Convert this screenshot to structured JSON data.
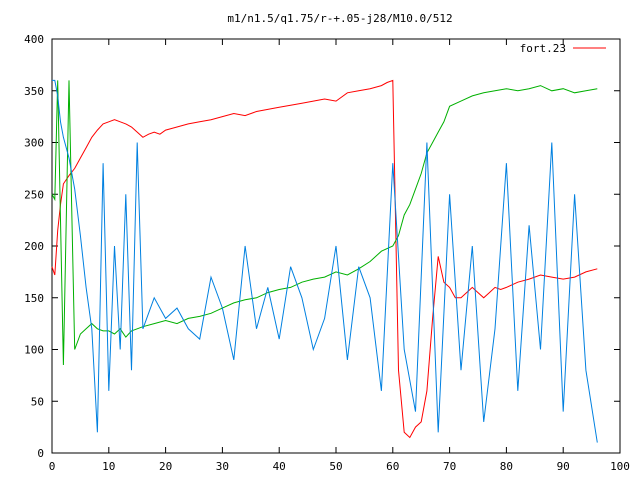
{
  "chart_data": {
    "type": "line",
    "title": "m1/n1.5/q1.75/r-+.05-j28/M10.0/512",
    "xlabel": "",
    "ylabel": "",
    "xlim": [
      0,
      100
    ],
    "ylim": [
      0,
      400
    ],
    "x_ticks": [
      "0",
      "10",
      "20",
      "30",
      "40",
      "50",
      "60",
      "70",
      "80",
      "90",
      "100"
    ],
    "y_ticks": [
      "0",
      "50",
      "100",
      "150",
      "200",
      "250",
      "300",
      "350",
      "400"
    ],
    "grid": false,
    "legend": "top-right",
    "series": [
      {
        "name": "fort.23",
        "color": "#ff0000",
        "x": [
          0,
          0.5,
          1,
          1.5,
          2,
          3,
          4,
          5,
          6,
          7,
          8,
          9,
          10,
          11,
          12,
          13,
          14,
          15,
          16,
          17,
          18,
          19,
          20,
          22,
          24,
          26,
          28,
          30,
          32,
          34,
          36,
          38,
          40,
          42,
          44,
          46,
          48,
          50,
          52,
          54,
          56,
          58,
          59,
          60,
          61,
          62,
          63,
          64,
          65,
          66,
          67,
          68,
          69,
          70,
          71,
          72,
          73,
          74,
          75,
          76,
          77,
          78,
          79,
          80,
          82,
          84,
          86,
          88,
          90,
          92,
          94,
          96
        ],
        "y": [
          180,
          172,
          215,
          240,
          260,
          268,
          275,
          285,
          295,
          305,
          312,
          318,
          320,
          322,
          320,
          318,
          315,
          310,
          305,
          308,
          310,
          308,
          312,
          315,
          318,
          320,
          322,
          325,
          328,
          326,
          330,
          332,
          334,
          336,
          338,
          340,
          342,
          340,
          348,
          350,
          352,
          355,
          358,
          360,
          80,
          20,
          15,
          25,
          30,
          60,
          130,
          190,
          165,
          160,
          150,
          150,
          155,
          160,
          155,
          150,
          155,
          160,
          158,
          160,
          165,
          168,
          172,
          170,
          168,
          170,
          175,
          178
        ]
      },
      {
        "color": "#00b000",
        "x": [
          0,
          0.5,
          1,
          2,
          3,
          4,
          5,
          6,
          7,
          8,
          9,
          10,
          11,
          12,
          13,
          14,
          15,
          16,
          18,
          20,
          22,
          24,
          26,
          28,
          30,
          32,
          34,
          36,
          38,
          40,
          42,
          44,
          46,
          48,
          50,
          52,
          54,
          56,
          58,
          60,
          61,
          62,
          63,
          64,
          65,
          66,
          67,
          68,
          69,
          70,
          72,
          74,
          76,
          78,
          80,
          82,
          84,
          86,
          88,
          90,
          92,
          94,
          96
        ],
        "y": [
          250,
          245,
          360,
          85,
          360,
          100,
          115,
          120,
          125,
          120,
          118,
          118,
          115,
          120,
          112,
          118,
          120,
          122,
          125,
          128,
          125,
          130,
          132,
          135,
          140,
          145,
          148,
          150,
          155,
          158,
          160,
          165,
          168,
          170,
          175,
          172,
          178,
          185,
          195,
          200,
          210,
          230,
          240,
          255,
          270,
          290,
          300,
          310,
          320,
          335,
          340,
          345,
          348,
          350,
          352,
          350,
          352,
          355,
          350,
          352,
          348,
          350,
          352
        ]
      },
      {
        "color": "#0080e0",
        "x": [
          0,
          0.5,
          1,
          1.5,
          2,
          3,
          4,
          5,
          6,
          7,
          8,
          9,
          10,
          11,
          12,
          13,
          14,
          15,
          16,
          18,
          20,
          22,
          24,
          26,
          28,
          30,
          32,
          34,
          36,
          38,
          40,
          42,
          44,
          46,
          48,
          50,
          52,
          54,
          56,
          58,
          60,
          62,
          64,
          66,
          68,
          70,
          72,
          74,
          76,
          78,
          80,
          82,
          84,
          86,
          88,
          90,
          92,
          94,
          96
        ],
        "y": [
          360,
          360,
          345,
          320,
          305,
          285,
          255,
          210,
          160,
          120,
          20,
          280,
          60,
          200,
          100,
          250,
          80,
          300,
          120,
          150,
          130,
          140,
          120,
          110,
          170,
          140,
          90,
          200,
          120,
          160,
          110,
          180,
          150,
          100,
          130,
          200,
          90,
          180,
          150,
          60,
          280,
          100,
          40,
          300,
          20,
          250,
          80,
          200,
          30,
          120,
          280,
          60,
          220,
          100,
          300,
          40,
          250,
          80,
          10
        ]
      }
    ]
  }
}
